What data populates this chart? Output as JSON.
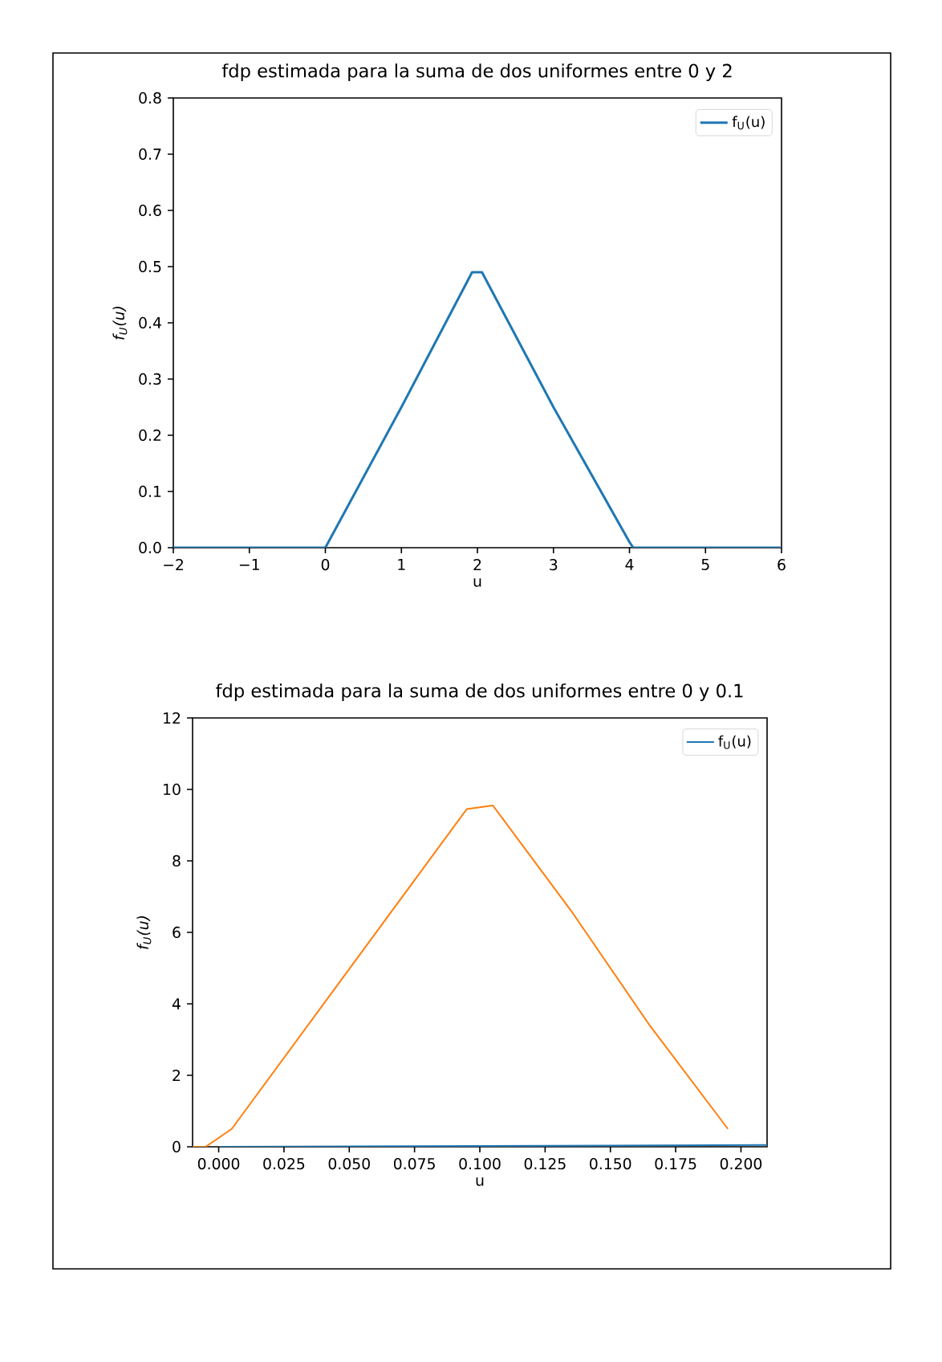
{
  "chart_data": [
    {
      "type": "line",
      "title": "fdp estimada para la suma de dos uniformes entre 0 y 2",
      "xlabel": "u",
      "ylabel": "f$_{U}$(u)",
      "x": [
        -2,
        0,
        1,
        1.93,
        2.06,
        3,
        4,
        4.05,
        6
      ],
      "series": [
        {
          "name": "f$_{U}$(u)",
          "color": "#1f77b4",
          "values": [
            0,
            0,
            0.25,
            0.49,
            0.49,
            0.25,
            0.01,
            0,
            0
          ]
        }
      ],
      "xlim": [
        -2,
        6
      ],
      "ylim": [
        0,
        0.8
      ],
      "xticks": [
        {
          "value": -2,
          "label": "−2"
        },
        {
          "value": -1,
          "label": "−1"
        },
        0,
        1,
        2,
        3,
        4,
        5,
        6
      ],
      "yticks": [
        {
          "value": 0,
          "label": "0.0"
        },
        0.1,
        0.2,
        0.3,
        0.4,
        0.5,
        0.6,
        0.7,
        0.8
      ],
      "legend": "top right"
    },
    {
      "type": "line",
      "title": "fdp estimada para la suma de dos uniformes entre 0 y 0.1",
      "xlabel": "u",
      "ylabel": "f$_{U}$(u)",
      "series": [
        {
          "name": "f$_{U}$(u)",
          "color": "#1f77b4",
          "x": [
            0,
            0.21
          ],
          "values": [
            0,
            0.05
          ]
        },
        {
          "color": "#ff7f0e",
          "x": [
            -0.01,
            -0.005,
            0.005,
            0.095,
            0.105,
            0.135,
            0.165,
            0.195
          ],
          "values": [
            0,
            0,
            0.5,
            9.45,
            9.55,
            6.6,
            3.4,
            0.5
          ]
        }
      ],
      "xlim": [
        -0.01,
        0.21
      ],
      "ylim": [
        0,
        12
      ],
      "xticks": [
        {
          "value": 0,
          "label": "0.000"
        },
        0.025,
        {
          "value": 0.05,
          "label": "0.050"
        },
        0.075,
        {
          "value": 0.1,
          "label": "0.100"
        },
        0.125,
        {
          "value": 0.15,
          "label": "0.150"
        },
        0.175,
        {
          "value": 0.2,
          "label": "0.200"
        }
      ],
      "yticks": [
        0,
        2,
        4,
        6,
        8,
        10,
        12
      ],
      "legend": "top right"
    }
  ]
}
